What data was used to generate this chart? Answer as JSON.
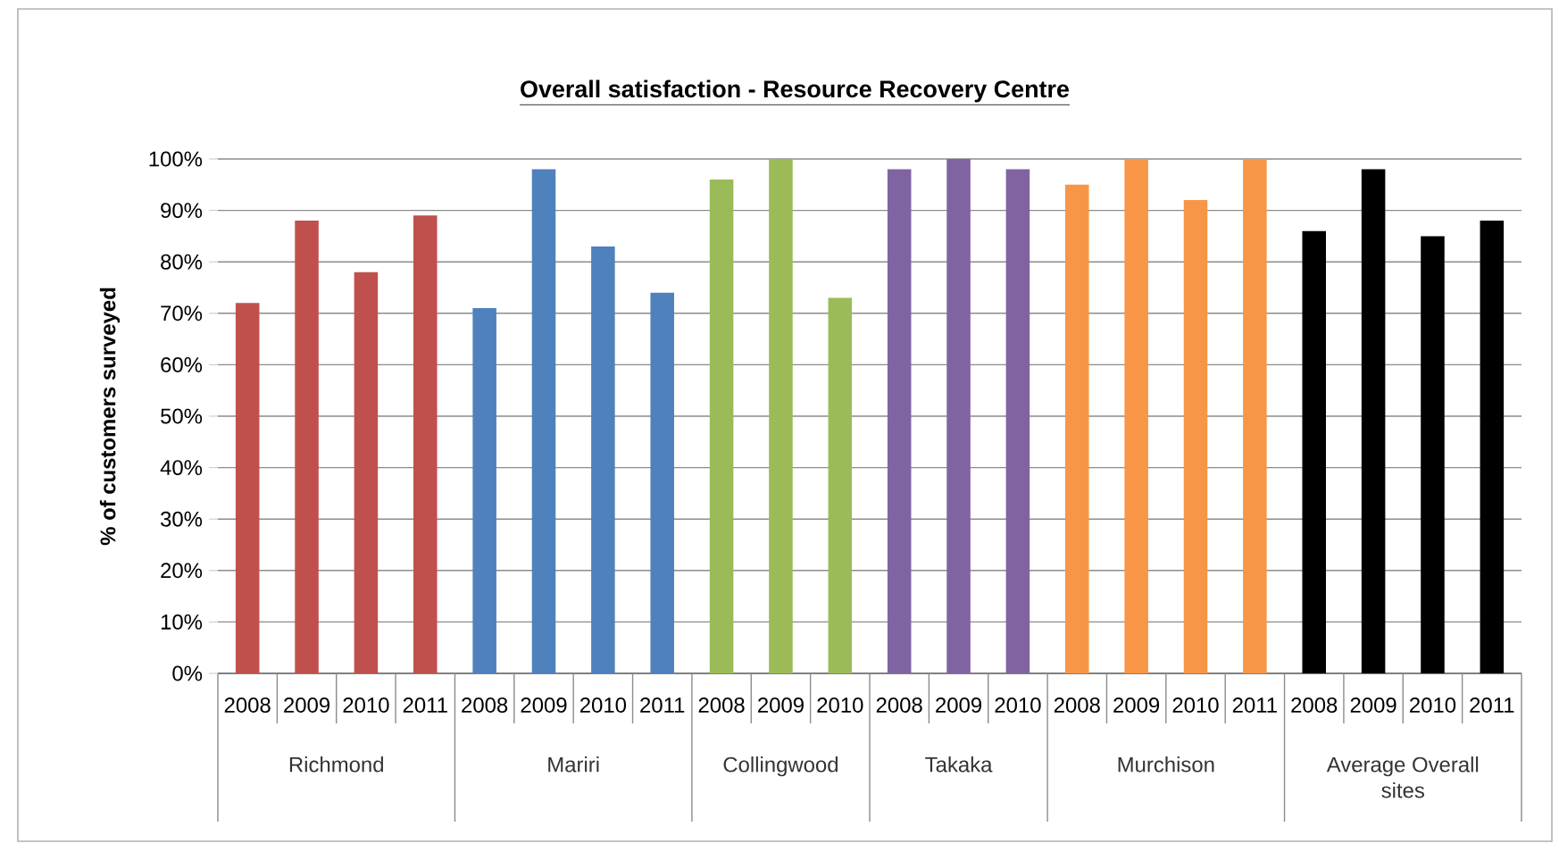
{
  "chart_data": {
    "type": "bar",
    "title": "Overall satisfaction - Resource Recovery Centre",
    "ylabel": "% of customers surveyed",
    "categories": [
      "2008",
      "2009",
      "2010",
      "2011",
      "2008",
      "2009",
      "2010",
      "2011",
      "2008",
      "2009",
      "2010",
      "2008",
      "2009",
      "2010",
      "2008",
      "2009",
      "2010",
      "2011",
      "2008",
      "2009",
      "2010",
      "2011"
    ],
    "values": [
      72,
      88,
      78,
      89,
      71,
      98,
      83,
      74,
      96,
      100,
      73,
      98,
      100,
      98,
      95,
      100,
      92,
      100,
      86,
      98,
      85,
      88
    ],
    "colors": [
      "#c0504d",
      "#c0504d",
      "#c0504d",
      "#c0504d",
      "#4f81bd",
      "#4f81bd",
      "#4f81bd",
      "#4f81bd",
      "#9bbb59",
      "#9bbb59",
      "#9bbb59",
      "#8064a2",
      "#8064a2",
      "#8064a2",
      "#f79646",
      "#f79646",
      "#f79646",
      "#f79646",
      "#000000",
      "#000000",
      "#000000",
      "#000000"
    ],
    "annotations": [
      "Richmond",
      "Mariri",
      "Collingwood",
      "Takaka",
      "Murchison",
      "Average Overall sites"
    ],
    "ylim": [
      0,
      100
    ],
    "yticks": [
      {
        "value": 0,
        "label": "0%"
      },
      {
        "value": 10,
        "label": "10%"
      },
      {
        "value": 20,
        "label": "20%"
      },
      {
        "value": 30,
        "label": "30%"
      },
      {
        "value": 40,
        "label": "40%"
      },
      {
        "value": 50,
        "label": "50%"
      },
      {
        "value": 60,
        "label": "60%"
      },
      {
        "value": 70,
        "label": "70%"
      },
      {
        "value": 80,
        "label": "80%"
      },
      {
        "value": 90,
        "label": "90%"
      },
      {
        "value": 100,
        "label": "100%"
      }
    ],
    "grid": "y"
  }
}
